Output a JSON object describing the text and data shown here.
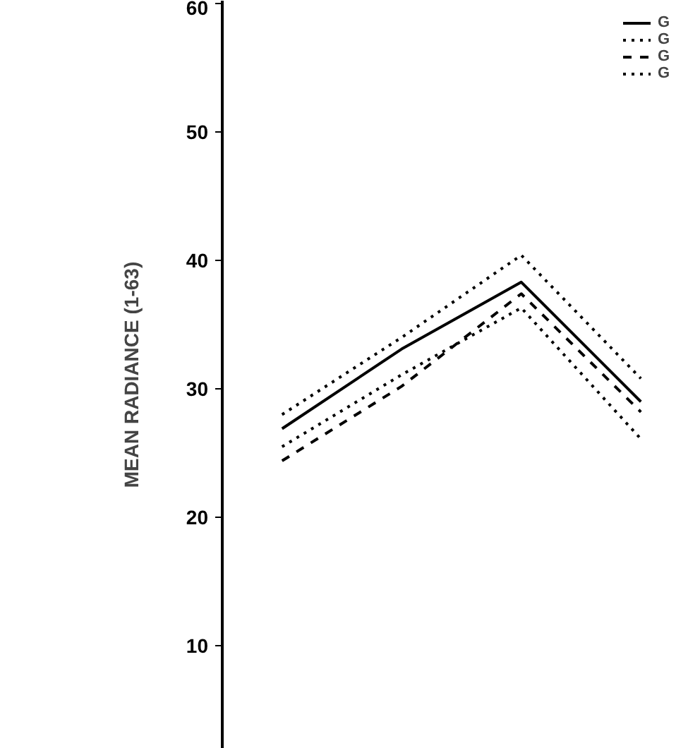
{
  "chart_data": {
    "type": "line",
    "ylabel": "MEAN RADIANCE (1-63)",
    "categories": [
      null,
      null,
      null,
      null
    ],
    "series": [
      {
        "name": "G",
        "color": "#000000",
        "line_style": "solid",
        "values": [
          26.9,
          33.1,
          38.3,
          29.0
        ]
      },
      {
        "name": "G",
        "color": "#000000",
        "line_style": "dotted",
        "values": [
          25.5,
          31.1,
          36.3,
          26.1
        ]
      },
      {
        "name": "G",
        "color": "#000000",
        "line_style": "dashed",
        "values": [
          24.4,
          30.2,
          37.4,
          28.2
        ]
      },
      {
        "name": "G",
        "color": "#000000",
        "line_style": "dotted",
        "values": [
          28.0,
          34.0,
          40.4,
          30.8
        ]
      }
    ],
    "ylim": [
      2,
      60.2
    ],
    "yticks": [
      10,
      20,
      30,
      40,
      50,
      60
    ],
    "tick_labels": "y",
    "legend": "top right",
    "grid": false
  }
}
